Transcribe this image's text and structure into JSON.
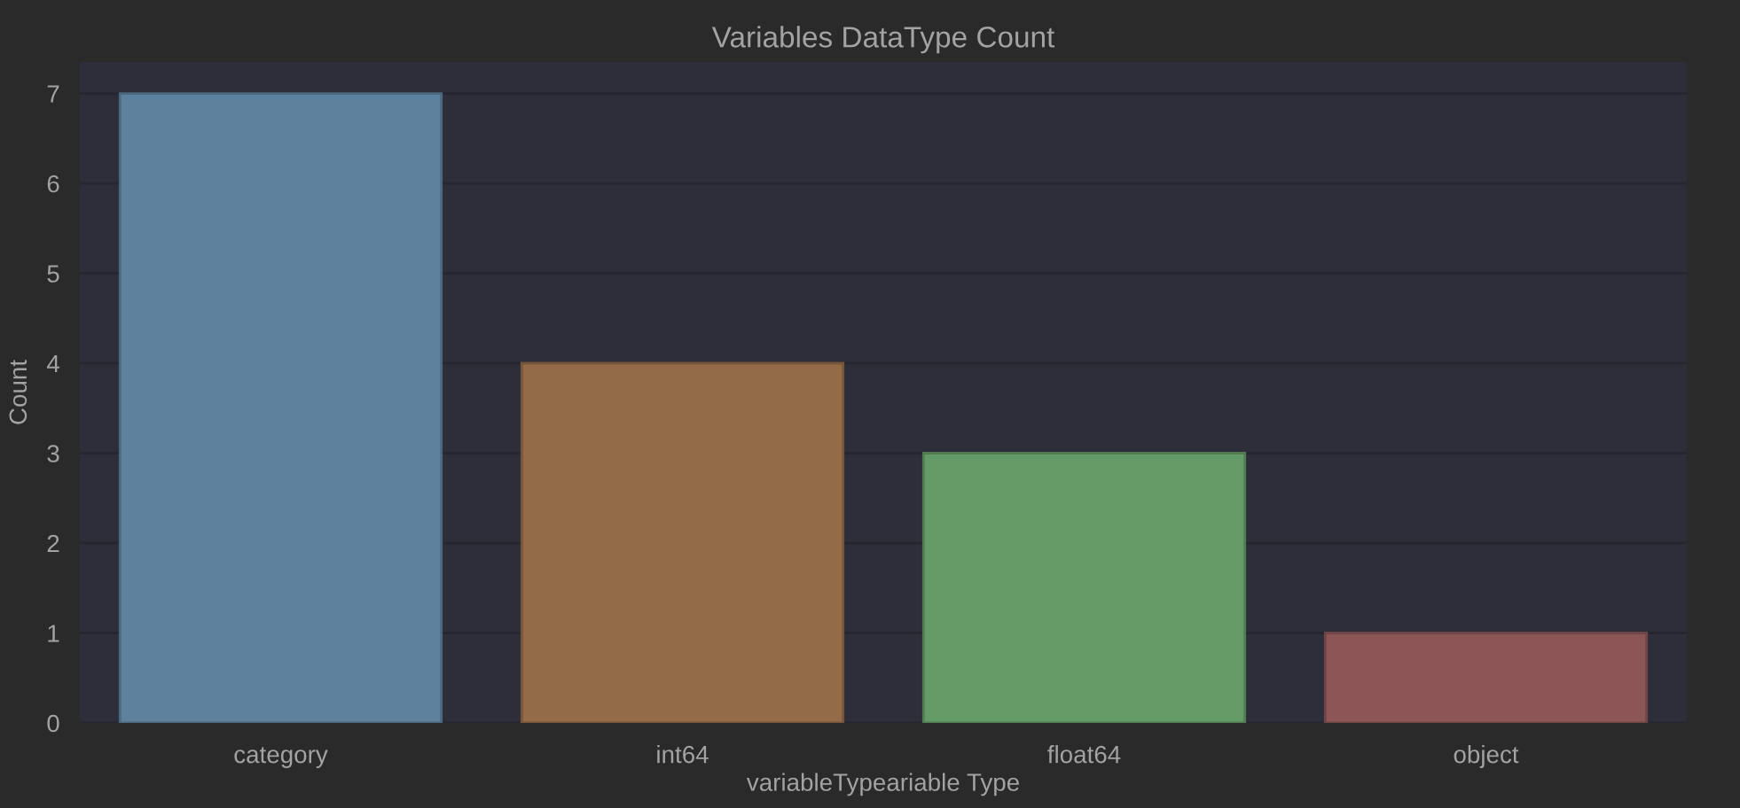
{
  "chart_data": {
    "type": "bar",
    "title": "Variables DataType Count",
    "xlabel": "variableTypeariable Type",
    "ylabel": "Count",
    "categories": [
      "category",
      "int64",
      "float64",
      "object"
    ],
    "values": [
      7,
      4,
      3,
      1
    ],
    "colors": [
      "#5e829d",
      "#936b49",
      "#659b66",
      "#8c5656"
    ],
    "ylim": [
      0,
      7.35
    ],
    "yticks": [
      0,
      1,
      2,
      3,
      4,
      5,
      6,
      7
    ],
    "grid": "y"
  }
}
